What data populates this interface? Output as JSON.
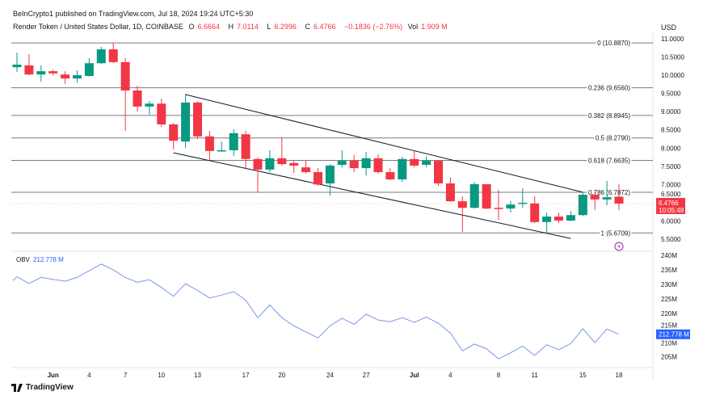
{
  "header": {
    "published": "BeInCrypto1 published on TradingView.com, Jul 18, 2024 19:24 UTC+5:30",
    "symbol": "Render Token / United States Dollar, 1D, COINBASE",
    "o_label": "O",
    "o": "6.6664",
    "h_label": "H",
    "h": "7.0114",
    "l_label": "L",
    "l": "6.2996",
    "c_label": "C",
    "c": "6.4766",
    "change": "−0.1836 (−2.76%)",
    "vol_label": "Vol",
    "vol": "1.909 M"
  },
  "colors": {
    "up": "#089981",
    "down": "#f23645",
    "obv": "#7b96e8",
    "obv_badge": "#2962ff",
    "fib": "#787b86"
  },
  "chart_data": [
    {
      "type": "candlestick",
      "currency": "USD",
      "y_ticks": [
        "11.0000",
        "10.5000",
        "10.0000",
        "9.5000",
        "9.0000",
        "8.5000",
        "8.0000",
        "7.5000",
        "7.0000",
        "6.5000",
        "6.0000",
        "5.5000"
      ],
      "ylim": [
        5.4,
        11.1
      ],
      "last_price_label": "6.4766",
      "countdown": "10:05:48",
      "fib_levels": [
        {
          "label": "0 (10.8870)",
          "price": 10.887
        },
        {
          "label": "0.236 (9.6560)",
          "price": 9.656
        },
        {
          "label": "0.382 (8.8945)",
          "price": 8.8945
        },
        {
          "label": "0.5 (8.2790)",
          "price": 8.279
        },
        {
          "label": "0.618 (7.6635)",
          "price": 7.6635
        },
        {
          "label": "0.786 (6.7872)",
          "price": 6.7872
        },
        {
          "label": "1 (5.6709)",
          "price": 5.6709
        }
      ],
      "trendlines": [
        {
          "from": [
            14,
            9.47
          ],
          "to": [
            47,
            6.79
          ]
        },
        {
          "from": [
            13,
            7.87
          ],
          "to": [
            46,
            5.52
          ]
        }
      ],
      "ohlc": [
        [
          10.22,
          10.62,
          10.09,
          10.29
        ],
        [
          10.27,
          10.58,
          10.0,
          10.02
        ],
        [
          10.02,
          10.27,
          9.82,
          10.11
        ],
        [
          10.11,
          10.15,
          9.99,
          10.05
        ],
        [
          10.02,
          10.11,
          9.76,
          9.91
        ],
        [
          9.91,
          10.13,
          9.8,
          10.0
        ],
        [
          9.98,
          10.47,
          9.96,
          10.33
        ],
        [
          10.33,
          10.78,
          10.31,
          10.71
        ],
        [
          10.71,
          10.89,
          10.33,
          10.36
        ],
        [
          10.36,
          10.47,
          8.47,
          9.58
        ],
        [
          9.58,
          9.71,
          9.0,
          9.14
        ],
        [
          9.14,
          9.29,
          8.92,
          9.22
        ],
        [
          9.22,
          9.36,
          8.58,
          8.65
        ],
        [
          8.65,
          8.69,
          7.96,
          8.2
        ],
        [
          8.18,
          9.49,
          8.0,
          9.25
        ],
        [
          9.25,
          9.29,
          8.25,
          8.32
        ],
        [
          8.32,
          8.47,
          7.63,
          7.92
        ],
        [
          7.92,
          8.18,
          7.9,
          7.94
        ],
        [
          7.94,
          8.52,
          7.78,
          8.41
        ],
        [
          8.38,
          8.47,
          7.45,
          7.7
        ],
        [
          7.7,
          7.74,
          6.79,
          7.41
        ],
        [
          7.41,
          7.94,
          7.34,
          7.72
        ],
        [
          7.72,
          8.3,
          7.52,
          7.56
        ],
        [
          7.59,
          7.65,
          7.32,
          7.52
        ],
        [
          7.47,
          7.65,
          7.3,
          7.34
        ],
        [
          7.34,
          7.45,
          6.96,
          7.0
        ],
        [
          7.03,
          7.56,
          6.7,
          7.52
        ],
        [
          7.54,
          7.94,
          7.47,
          7.65
        ],
        [
          7.65,
          7.81,
          7.34,
          7.45
        ],
        [
          7.45,
          7.9,
          7.25,
          7.72
        ],
        [
          7.72,
          7.83,
          7.3,
          7.34
        ],
        [
          7.34,
          7.45,
          7.12,
          7.14
        ],
        [
          7.14,
          7.76,
          7.07,
          7.7
        ],
        [
          7.7,
          7.92,
          7.47,
          7.52
        ],
        [
          7.54,
          7.78,
          7.47,
          7.65
        ],
        [
          7.65,
          7.67,
          6.96,
          7.03
        ],
        [
          7.03,
          7.2,
          6.52,
          6.54
        ],
        [
          6.54,
          6.68,
          5.7,
          6.36
        ],
        [
          6.36,
          7.07,
          6.34,
          7.01
        ],
        [
          7.01,
          7.01,
          6.32,
          6.34
        ],
        [
          6.36,
          6.85,
          6.03,
          6.34
        ],
        [
          6.34,
          6.54,
          6.23,
          6.45
        ],
        [
          6.48,
          6.9,
          6.36,
          6.5
        ],
        [
          6.48,
          6.68,
          5.94,
          5.97
        ],
        [
          5.97,
          6.23,
          5.68,
          6.12
        ],
        [
          6.12,
          6.23,
          5.94,
          6.01
        ],
        [
          6.01,
          6.27,
          5.99,
          6.16
        ],
        [
          6.16,
          6.79,
          6.14,
          6.72
        ],
        [
          6.72,
          6.79,
          6.3,
          6.59
        ],
        [
          6.59,
          7.1,
          6.43,
          6.65
        ],
        [
          6.6664,
          7.0114,
          6.2996,
          6.4766
        ]
      ]
    },
    {
      "type": "line",
      "name": "OBV",
      "last_label": "212.778 M",
      "y_ticks": [
        "240M",
        "235M",
        "230M",
        "225M",
        "220M",
        "215M",
        "210M",
        "205M"
      ],
      "ylim": [
        202,
        241
      ],
      "values": [
        232.6,
        230.3,
        232.4,
        231.7,
        231.1,
        232.4,
        234.7,
        237.0,
        235.0,
        232.4,
        230.7,
        231.6,
        228.9,
        225.9,
        230.2,
        227.9,
        225.3,
        226.3,
        227.5,
        224.5,
        218.5,
        222.9,
        218.5,
        215.7,
        213.6,
        211.5,
        215.7,
        218.3,
        216.2,
        219.7,
        217.7,
        217.1,
        218.5,
        216.9,
        218.7,
        216.6,
        213.2,
        207.1,
        209.4,
        207.8,
        204.3,
        206.4,
        208.7,
        205.5,
        209.2,
        207.5,
        209.6,
        214.7,
        209.9,
        214.6,
        212.778
      ]
    }
  ],
  "x_axis": {
    "ticks": [
      {
        "label": "Jun",
        "index": 3,
        "bold": true
      },
      {
        "label": "4",
        "index": 6
      },
      {
        "label": "7",
        "index": 9
      },
      {
        "label": "10",
        "index": 12
      },
      {
        "label": "13",
        "index": 15
      },
      {
        "label": "17",
        "index": 19
      },
      {
        "label": "20",
        "index": 22
      },
      {
        "label": "24",
        "index": 26
      },
      {
        "label": "27",
        "index": 29
      },
      {
        "label": "Jul",
        "index": 33,
        "bold": true
      },
      {
        "label": "4",
        "index": 36
      },
      {
        "label": "8",
        "index": 40
      },
      {
        "label": "11",
        "index": 43
      },
      {
        "label": "15",
        "index": 47
      },
      {
        "label": "18",
        "index": 50
      }
    ]
  },
  "footer": {
    "brand": "TradingView"
  }
}
